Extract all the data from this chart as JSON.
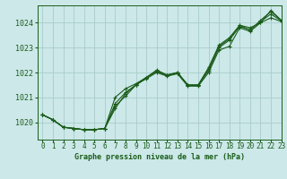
{
  "title": "Graphe pression niveau de la mer (hPa)",
  "background_color": "#cce8e8",
  "grid_color": "#aacccc",
  "line_color": "#1a5c1a",
  "marker_color": "#1a5c1a",
  "xlim": [
    -0.5,
    23
  ],
  "ylim": [
    1019.3,
    1024.7
  ],
  "yticks": [
    1020,
    1021,
    1022,
    1023,
    1024
  ],
  "xticks": [
    0,
    1,
    2,
    3,
    4,
    5,
    6,
    7,
    8,
    9,
    10,
    11,
    12,
    13,
    14,
    15,
    16,
    17,
    18,
    19,
    20,
    21,
    22,
    23
  ],
  "series": [
    [
      1020.3,
      1020.1,
      1019.8,
      1019.75,
      1019.7,
      1019.7,
      1019.75,
      1020.65,
      1021.05,
      1021.5,
      1021.75,
      1022.0,
      1021.85,
      1021.95,
      1021.45,
      1021.45,
      1022.0,
      1022.9,
      1023.05,
      1023.8,
      1023.65,
      1024.0,
      1024.2,
      1024.05
    ],
    [
      1020.3,
      1020.1,
      1019.8,
      1019.75,
      1019.7,
      1019.7,
      1019.75,
      1021.0,
      1021.35,
      1021.55,
      1021.8,
      1022.05,
      1021.9,
      1022.0,
      1021.5,
      1021.5,
      1022.15,
      1023.05,
      1023.35,
      1023.9,
      1023.7,
      1024.1,
      1024.45,
      1024.1
    ],
    [
      1020.3,
      1020.1,
      1019.8,
      1019.75,
      1019.7,
      1019.7,
      1019.75,
      1020.55,
      1021.15,
      1021.5,
      1021.8,
      1022.1,
      1021.9,
      1022.0,
      1021.5,
      1021.5,
      1022.2,
      1023.1,
      1023.4,
      1023.9,
      1023.8,
      1024.0,
      1024.5,
      1024.1
    ],
    [
      1020.3,
      1020.1,
      1019.8,
      1019.75,
      1019.7,
      1019.7,
      1019.75,
      1020.75,
      1021.2,
      1021.5,
      1021.8,
      1022.05,
      1021.88,
      1021.98,
      1021.48,
      1021.48,
      1022.08,
      1023.0,
      1023.3,
      1023.85,
      1023.72,
      1024.05,
      1024.35,
      1024.08
    ]
  ]
}
